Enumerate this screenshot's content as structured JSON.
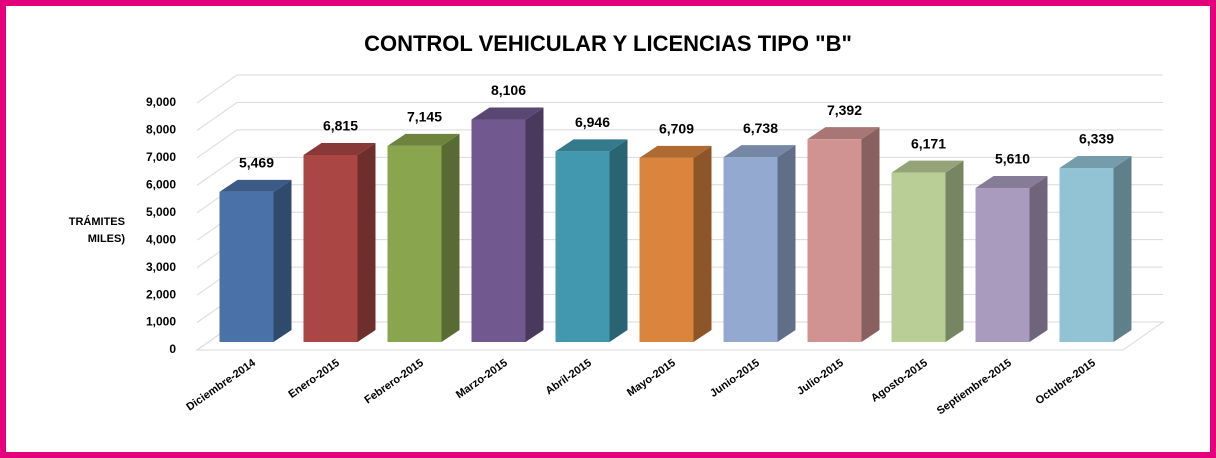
{
  "chart_data": {
    "type": "bar3d",
    "title": "CONTROL VEHICULAR Y LICENCIAS TIPO \"B\"",
    "y_label": [
      "TRÁMITES",
      "MILES)"
    ],
    "categories": [
      "Diciembre-2014",
      "Enero-2015",
      "Febrero-2015",
      "Marzo-2015",
      "Abril-2015",
      "Mayo-2015",
      "Junio-2015",
      "Julio-2015",
      "Agosto-2015",
      "Septiembre-2015",
      "Octubre-2015"
    ],
    "values": [
      5469,
      6815,
      7145,
      8106,
      6946,
      6709,
      6738,
      7392,
      6171,
      5610,
      6339
    ],
    "value_labels": [
      "5,469",
      "6,815",
      "7,145",
      "8,106",
      "6,946",
      "6,709",
      "6,738",
      "7,392",
      "6,171",
      "5,610",
      "6,339"
    ],
    "colors": [
      "#4a72a8",
      "#aa4643",
      "#89a54e",
      "#71588f",
      "#4198af",
      "#db843d",
      "#93a9cf",
      "#d19392",
      "#b9cd96",
      "#a99bbd",
      "#92c3d4"
    ],
    "ylim": [
      0,
      9000
    ],
    "yticks": [
      0,
      {
        "value": 1000,
        "label": "1,000"
      },
      {
        "value": 2000,
        "label": "2,000"
      },
      {
        "value": 3000,
        "label": "3,000"
      },
      {
        "value": 4000,
        "label": "4,000"
      },
      {
        "value": 5000,
        "label": "5,000"
      },
      {
        "value": 6000,
        "label": "6,000"
      },
      {
        "value": 7000,
        "label": "7,000"
      },
      {
        "value": 8000,
        "label": "8,000"
      },
      {
        "value": 9000,
        "label": "9,000"
      }
    ],
    "grid": true
  }
}
